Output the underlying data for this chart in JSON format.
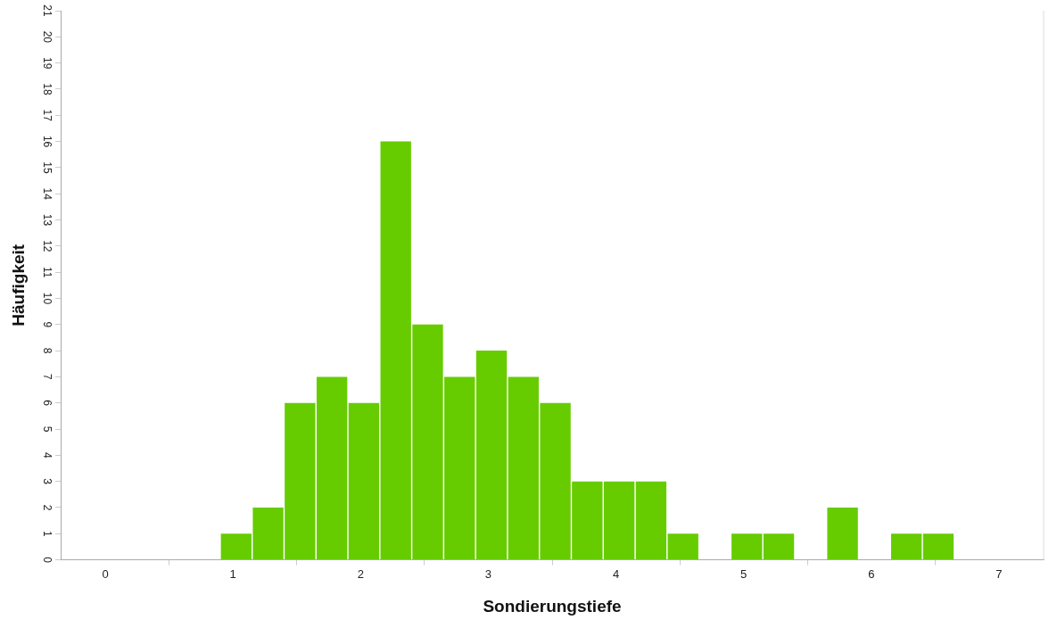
{
  "chart_data": {
    "type": "histogram",
    "xlabel": "Sondierungstiefe",
    "ylabel": "Häufigkeit",
    "bins": [
      0.9,
      1.15,
      1.4,
      1.65,
      1.9,
      2.15,
      2.4,
      2.65,
      2.9,
      3.15,
      3.4,
      3.65,
      3.9,
      4.15,
      4.4,
      4.65,
      4.9,
      5.15,
      5.4,
      5.65,
      5.9,
      6.15,
      6.4,
      6.65
    ],
    "values": [
      1,
      2,
      6,
      7,
      6,
      16,
      9,
      7,
      8,
      7,
      6,
      3,
      3,
      3,
      1,
      0,
      1,
      1,
      0,
      2,
      0,
      1,
      1
    ],
    "color": "#66cc00",
    "xlim": [
      -0.35,
      7.35
    ],
    "xticks": [
      0,
      1,
      2,
      3,
      4,
      5,
      6,
      7
    ],
    "ylim": [
      0,
      21
    ],
    "yticks": [
      0,
      1,
      2,
      3,
      4,
      5,
      6,
      7,
      8,
      9,
      10,
      11,
      12,
      13,
      14,
      15,
      16,
      17,
      18,
      19,
      20,
      21
    ],
    "grid": false,
    "legend": false
  }
}
